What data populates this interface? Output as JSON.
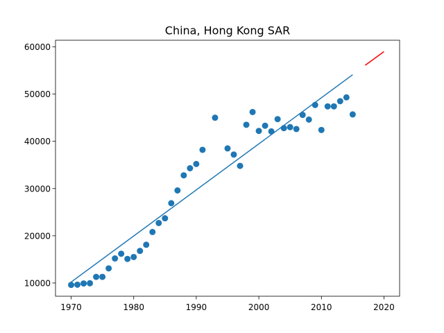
{
  "chart_data": {
    "type": "scatter",
    "title": "China, Hong Kong SAR",
    "xlabel": "",
    "ylabel": "",
    "xlim": [
      1967.5,
      2022.5
    ],
    "ylim": [
      7200,
      61400
    ],
    "xticks": [
      1970,
      1980,
      1990,
      2000,
      2010,
      2020
    ],
    "yticks": [
      10000,
      20000,
      30000,
      40000,
      50000,
      60000
    ],
    "grid": false,
    "colors": {
      "points": "#1f77b4",
      "fit": "#1f77b4",
      "forecast": "#ff0000"
    },
    "points": [
      [
        1970,
        9600
      ],
      [
        1971,
        9650
      ],
      [
        1972,
        9900
      ],
      [
        1973,
        9950
      ],
      [
        1974,
        11300
      ],
      [
        1975,
        11300
      ],
      [
        1976,
        13100
      ],
      [
        1977,
        15200
      ],
      [
        1978,
        16200
      ],
      [
        1979,
        15100
      ],
      [
        1980,
        15500
      ],
      [
        1981,
        16800
      ],
      [
        1982,
        18100
      ],
      [
        1983,
        20800
      ],
      [
        1984,
        22700
      ],
      [
        1985,
        23700
      ],
      [
        1986,
        26900
      ],
      [
        1987,
        29600
      ],
      [
        1988,
        32800
      ],
      [
        1989,
        34300
      ],
      [
        1990,
        35200
      ],
      [
        1991,
        38200
      ],
      [
        1993,
        45000
      ],
      [
        1995,
        38500
      ],
      [
        1996,
        37200
      ],
      [
        1997,
        34800
      ],
      [
        1998,
        43500
      ],
      [
        1999,
        46200
      ],
      [
        2000,
        42200
      ],
      [
        2001,
        43300
      ],
      [
        2002,
        42100
      ],
      [
        2003,
        44700
      ],
      [
        2004,
        42800
      ],
      [
        2005,
        43000
      ],
      [
        2006,
        42600
      ],
      [
        2007,
        45600
      ],
      [
        2008,
        44600
      ],
      [
        2009,
        47700
      ],
      [
        2010,
        42400
      ],
      [
        2011,
        47400
      ],
      [
        2012,
        47400
      ],
      [
        2013,
        48500
      ],
      [
        2014,
        49300
      ],
      [
        2015,
        45700
      ]
    ],
    "fit_line": [
      [
        1970,
        10200
      ],
      [
        2015,
        54100
      ]
    ],
    "forecast_line": [
      [
        2017,
        56100
      ],
      [
        2020,
        59000
      ]
    ]
  }
}
